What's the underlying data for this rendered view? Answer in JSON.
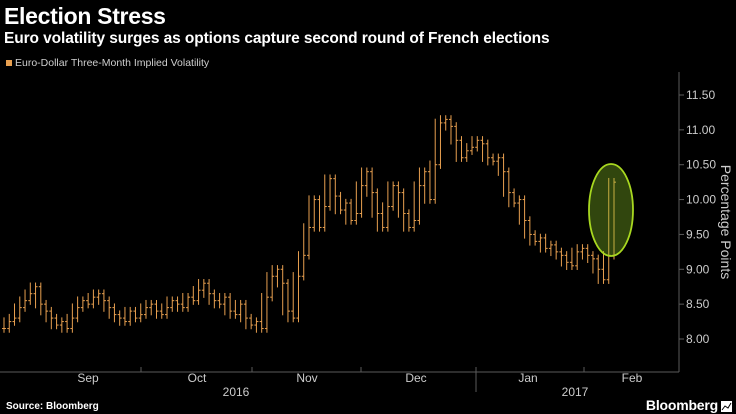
{
  "header": {
    "title": "Election Stress",
    "subtitle": "Euro volatility surges as options capture second round of French elections"
  },
  "footer": {
    "source": "Source: Bloomberg",
    "brand": "Bloomberg"
  },
  "colors": {
    "series": "#e8a050",
    "highlight": "#a8d820",
    "axis": "#5a5a5a",
    "text": "#cccccc"
  },
  "chart_data": {
    "type": "line",
    "style": "ohlc-bars",
    "title": "Election Stress",
    "subtitle": "Euro volatility surges as options capture second round of French elections",
    "ylabel": "Percentage Points",
    "xlabel": "",
    "ylim": [
      7.75,
      11.6
    ],
    "yticks": [
      8.0,
      8.5,
      9.0,
      9.5,
      10.0,
      10.5,
      11.0,
      11.5
    ],
    "ytick_labels": [
      "8.00",
      "8.50",
      "9.00",
      "9.50",
      "10.00",
      "10.50",
      "11.00",
      "11.50"
    ],
    "x_month_labels": [
      "Sep",
      "Oct",
      "Nov",
      "Dec",
      "Jan",
      "Feb"
    ],
    "x_year_labels": [
      "2016",
      "2017"
    ],
    "grid": false,
    "legend": "top-left",
    "series": [
      {
        "name": "Euro-Dollar Three-Month Implied Volatility",
        "values": [
          8.15,
          8.25,
          8.3,
          8.45,
          8.55,
          8.65,
          8.75,
          8.5,
          8.4,
          8.3,
          8.2,
          8.25,
          8.15,
          8.3,
          8.45,
          8.55,
          8.5,
          8.6,
          8.65,
          8.55,
          8.45,
          8.35,
          8.3,
          8.25,
          8.4,
          8.3,
          8.35,
          8.45,
          8.5,
          8.4,
          8.35,
          8.45,
          8.55,
          8.5,
          8.45,
          8.6,
          8.55,
          8.7,
          8.8,
          8.65,
          8.55,
          8.5,
          8.6,
          8.4,
          8.35,
          8.5,
          8.3,
          8.2,
          8.25,
          8.15,
          8.6,
          8.9,
          9.0,
          8.8,
          8.4,
          8.3,
          8.9,
          9.2,
          9.6,
          10.0,
          9.6,
          9.9,
          10.3,
          10.05,
          9.85,
          9.95,
          9.7,
          9.8,
          10.2,
          10.4,
          10.1,
          9.8,
          9.6,
          9.9,
          10.2,
          10.1,
          9.8,
          9.6,
          9.7,
          10.2,
          10.4,
          10.0,
          10.5,
          11.1,
          11.15,
          11.05,
          10.85,
          10.6,
          10.7,
          10.75,
          10.85,
          10.8,
          10.6,
          10.55,
          10.6,
          10.4,
          10.1,
          9.95,
          10.0,
          9.7,
          9.5,
          9.4,
          9.45,
          9.3,
          9.35,
          9.25,
          9.2,
          9.1,
          9.05,
          9.25,
          9.3,
          9.2,
          9.15,
          9.0,
          8.85,
          9.2,
          10.25
        ]
      }
    ],
    "annotations": [
      {
        "type": "ellipse",
        "label": "second round of French elections",
        "target": "latest values"
      }
    ]
  }
}
